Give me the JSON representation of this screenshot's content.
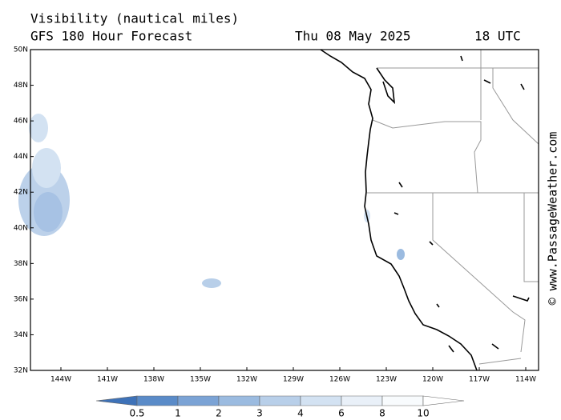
{
  "header": {
    "title": "Visibility (nautical miles)",
    "model": "GFS 180 Hour Forecast",
    "date": "Thu 08 May 2025",
    "time": "18 UTC"
  },
  "map": {
    "lat_labels": [
      "50N",
      "48N",
      "46N",
      "44N",
      "42N",
      "40N",
      "38N",
      "36N",
      "34N",
      "32N"
    ],
    "lon_labels": [
      "144W",
      "141W",
      "138W",
      "135W",
      "132W",
      "129W",
      "126W",
      "123W",
      "120W",
      "117W",
      "114W"
    ]
  },
  "legend": {
    "labels": [
      "0.5",
      "1",
      "2",
      "3",
      "4",
      "6",
      "8",
      "10"
    ],
    "colors": [
      "#3e72b8",
      "#5a8bc8",
      "#7ba3d5",
      "#9bbbe0",
      "#b8cfe9",
      "#d3e2f2",
      "#e9f0f8",
      "#f8fbfd",
      "#ffffff"
    ]
  },
  "watermark": "© www.PassageWeather.com"
}
